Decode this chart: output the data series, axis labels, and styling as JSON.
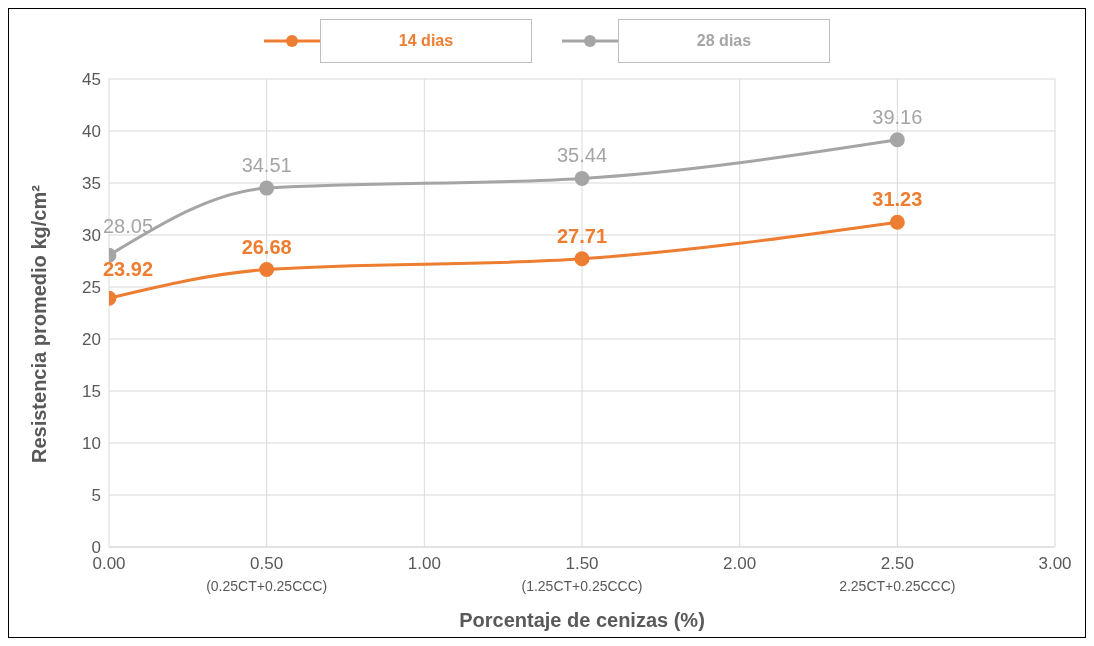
{
  "chart_data": {
    "type": "line",
    "xlabel": "Porcentaje de cenizas (%)",
    "ylabel": "Resistencia promedio kg/cm²",
    "x": [
      0,
      0.5,
      1.5,
      2.5
    ],
    "series": [
      {
        "name": "14 dias",
        "color": "#ed7d31",
        "values": [
          23.92,
          26.68,
          27.71,
          31.23
        ]
      },
      {
        "name": "28 dias",
        "color": "#a5a5a5",
        "values": [
          28.05,
          34.51,
          35.44,
          39.16
        ]
      }
    ],
    "xlim": [
      0,
      3
    ],
    "xticks": [
      {
        "value": 0,
        "label": "0.00"
      },
      {
        "value": 0.5,
        "label": "0.50\n(0.25CT+0.25CCC)"
      },
      {
        "value": 1,
        "label": "1.00"
      },
      {
        "value": 1.5,
        "label": "1.50\n(1.25CT+0.25CCC)"
      },
      {
        "value": 2,
        "label": "2.00"
      },
      {
        "value": 2.5,
        "label": "2.50\n2.25CT+0.25CCC)"
      },
      {
        "value": 3,
        "label": "3.00"
      }
    ],
    "ylim": [
      0,
      45
    ],
    "yticks": [
      0,
      5,
      10,
      15,
      20,
      25,
      30,
      35,
      40,
      45
    ],
    "grid": true,
    "legend": "top",
    "marker": "circle",
    "line_style": "solid",
    "data_labels": true
  }
}
